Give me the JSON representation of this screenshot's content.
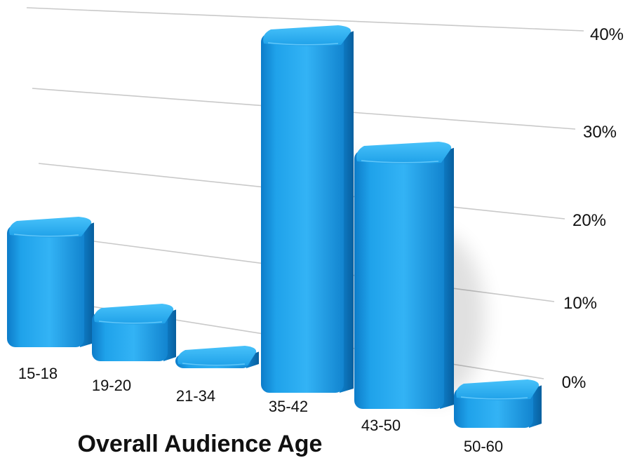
{
  "chart_data": {
    "type": "bar",
    "title": "Overall Audience Age",
    "categories": [
      "15-18",
      "19-20",
      "21-34",
      "35-42",
      "43-50",
      "50-60"
    ],
    "series": [
      {
        "values": [
          14,
          6,
          1,
          40,
          29,
          5
        ]
      }
    ],
    "y_ticks": [
      "0%",
      "10%",
      "20%",
      "30%",
      "40%"
    ],
    "ylim": [
      0,
      40
    ],
    "grid": true,
    "style": "3d-perspective",
    "bar_color": "#1e9fe6"
  }
}
